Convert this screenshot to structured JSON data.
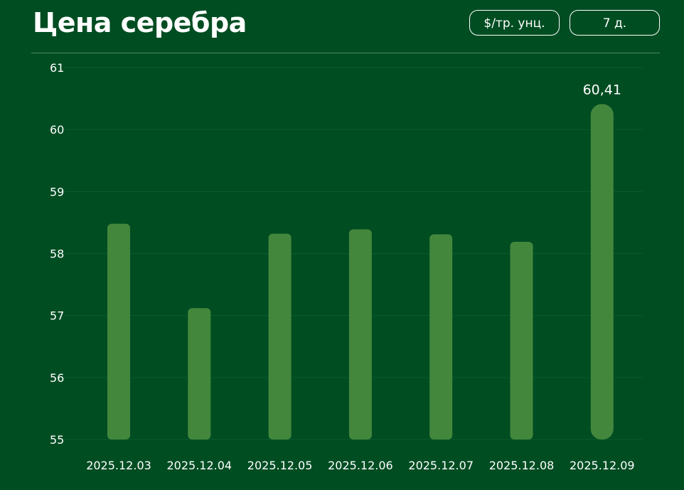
{
  "header": {
    "title": "Цена серебра",
    "unit_label": "$/тр. унц.",
    "period_label": "7 д."
  },
  "chart_data": {
    "type": "bar",
    "title": "Цена серебра",
    "xlabel": "",
    "ylabel": "",
    "categories": [
      "2025.12.03",
      "2025.12.04",
      "2025.12.05",
      "2025.12.06",
      "2025.12.07",
      "2025.12.08",
      "2025.12.09"
    ],
    "values": [
      58.48,
      57.12,
      58.32,
      58.39,
      58.31,
      58.19,
      60.41
    ],
    "ylim": [
      55,
      61
    ],
    "yticks": [
      55,
      56,
      57,
      58,
      59,
      60,
      61
    ],
    "ytick_labels": [
      "55",
      "56",
      "57",
      "58",
      "59",
      "60",
      "61"
    ],
    "annotations": [
      {
        "category": "2025.12.09",
        "text": "60,41"
      }
    ],
    "grid": true,
    "legend": "none",
    "colors": {
      "background": "#004d22",
      "bar": "#43873d",
      "grid": "#0b5a2c",
      "text": "#ffffff"
    }
  }
}
